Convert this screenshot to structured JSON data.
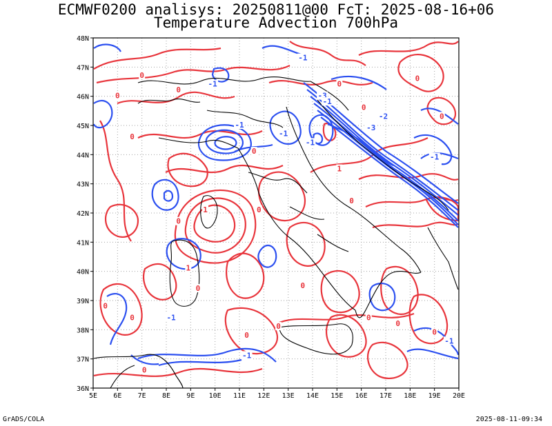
{
  "title_line1": "ECMWF0200 analisys: 20250811@00 FcT: 2025-08-16+06",
  "title_line2": "Temperature Advection 700hPa",
  "footer_left": "GrADS/COLA",
  "footer_right": "2025-08-11-09:34",
  "axes": {
    "lon_labels": [
      "5E",
      "6E",
      "7E",
      "8E",
      "9E",
      "10E",
      "11E",
      "12E",
      "13E",
      "14E",
      "15E",
      "16E",
      "17E",
      "18E",
      "19E",
      "20E"
    ],
    "lat_labels": [
      "48N",
      "47N",
      "46N",
      "45N",
      "44N",
      "43N",
      "42N",
      "41N",
      "40N",
      "39N",
      "38N",
      "37N",
      "36N"
    ],
    "lon_range": [
      5,
      20
    ],
    "lat_range": [
      36,
      48
    ],
    "grid": "dotted"
  },
  "colors": {
    "warm_advection": "#e8343b",
    "cold_advection": "#2b4ff0",
    "coastline": "#000000",
    "grid": "#a0a0a0"
  },
  "contour_labels": [
    {
      "text": "-1",
      "lon": 12.8,
      "lat": 44.7,
      "sign": "neg"
    },
    {
      "text": "-1",
      "lon": 13.6,
      "lat": 47.3,
      "sign": "neg"
    },
    {
      "text": "-1",
      "lon": 9.9,
      "lat": 46.4,
      "sign": "neg"
    },
    {
      "text": "-1",
      "lon": 11.0,
      "lat": 45.0,
      "sign": "neg"
    },
    {
      "text": "-1",
      "lon": 13.9,
      "lat": 44.4,
      "sign": "neg"
    },
    {
      "text": "-3",
      "lon": 14.4,
      "lat": 46.0,
      "sign": "neg"
    },
    {
      "text": "-1",
      "lon": 14.6,
      "lat": 45.8,
      "sign": "neg"
    },
    {
      "text": "-2",
      "lon": 16.9,
      "lat": 45.3,
      "sign": "neg"
    },
    {
      "text": "-3",
      "lon": 16.4,
      "lat": 44.9,
      "sign": "neg"
    },
    {
      "text": "-1",
      "lon": 19.0,
      "lat": 43.9,
      "sign": "neg"
    },
    {
      "text": "-1",
      "lon": 8.2,
      "lat": 38.4,
      "sign": "neg"
    },
    {
      "text": "-1",
      "lon": 11.3,
      "lat": 37.1,
      "sign": "neg"
    },
    {
      "text": "-1",
      "lon": 19.6,
      "lat": 37.6,
      "sign": "neg"
    },
    {
      "text": "0",
      "lon": 7.0,
      "lat": 46.7,
      "sign": "zero"
    },
    {
      "text": "0",
      "lon": 8.5,
      "lat": 46.2,
      "sign": "zero"
    },
    {
      "text": "0",
      "lon": 15.1,
      "lat": 46.4,
      "sign": "zero"
    },
    {
      "text": "0",
      "lon": 16.1,
      "lat": 45.6,
      "sign": "zero"
    },
    {
      "text": "0",
      "lon": 18.3,
      "lat": 46.6,
      "sign": "zero"
    },
    {
      "text": "0",
      "lon": 19.3,
      "lat": 45.3,
      "sign": "zero"
    },
    {
      "text": "0",
      "lon": 6.0,
      "lat": 46.0,
      "sign": "zero"
    },
    {
      "text": "0",
      "lon": 6.6,
      "lat": 44.6,
      "sign": "zero"
    },
    {
      "text": "0",
      "lon": 11.6,
      "lat": 44.1,
      "sign": "zero"
    },
    {
      "text": "0",
      "lon": 15.6,
      "lat": 42.4,
      "sign": "zero"
    },
    {
      "text": "0",
      "lon": 8.5,
      "lat": 41.7,
      "sign": "zero"
    },
    {
      "text": "0",
      "lon": 11.8,
      "lat": 42.1,
      "sign": "zero"
    },
    {
      "text": "0",
      "lon": 13.6,
      "lat": 39.5,
      "sign": "zero"
    },
    {
      "text": "0",
      "lon": 12.6,
      "lat": 38.1,
      "sign": "zero"
    },
    {
      "text": "0",
      "lon": 16.3,
      "lat": 38.4,
      "sign": "zero"
    },
    {
      "text": "0",
      "lon": 17.5,
      "lat": 38.2,
      "sign": "zero"
    },
    {
      "text": "0",
      "lon": 19.0,
      "lat": 37.9,
      "sign": "zero"
    },
    {
      "text": "0",
      "lon": 5.5,
      "lat": 38.8,
      "sign": "zero"
    },
    {
      "text": "0",
      "lon": 6.6,
      "lat": 38.4,
      "sign": "zero"
    },
    {
      "text": "0",
      "lon": 7.1,
      "lat": 36.6,
      "sign": "zero"
    },
    {
      "text": "0",
      "lon": 11.3,
      "lat": 37.8,
      "sign": "zero"
    },
    {
      "text": "0",
      "lon": 9.3,
      "lat": 39.4,
      "sign": "zero"
    },
    {
      "text": "1",
      "lon": 15.1,
      "lat": 43.5,
      "sign": "pos"
    },
    {
      "text": "1",
      "lon": 9.6,
      "lat": 42.1,
      "sign": "pos"
    },
    {
      "text": "1",
      "lon": 8.9,
      "lat": 40.1,
      "sign": "pos"
    }
  ]
}
